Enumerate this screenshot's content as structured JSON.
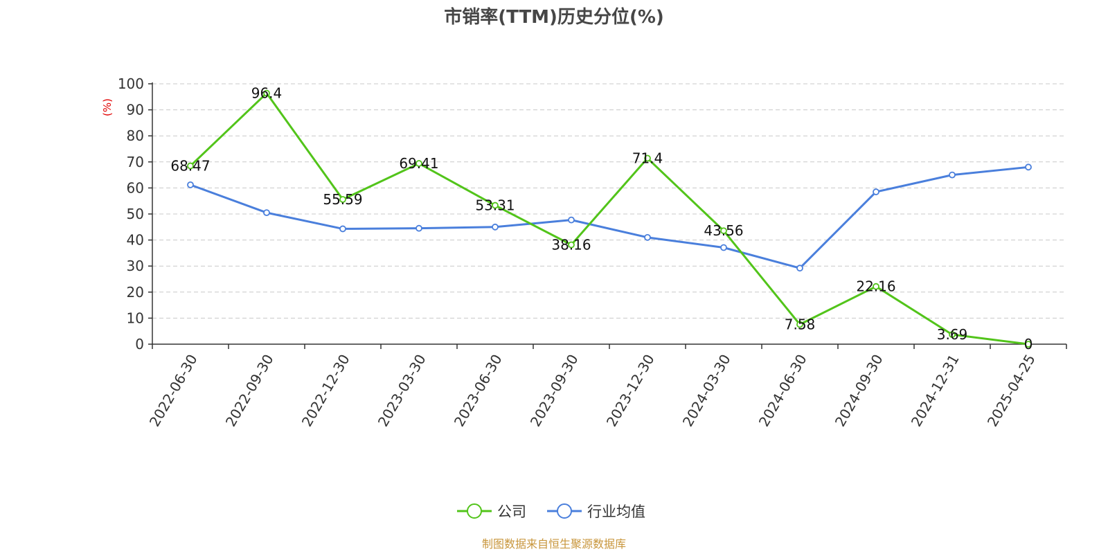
{
  "chart_data": {
    "type": "line",
    "title": "市销率(TTM)历史分位(%)",
    "ylabel": "(%)",
    "xlabel": "",
    "ylim": [
      0,
      100
    ],
    "yticks": [
      0,
      10,
      20,
      30,
      40,
      50,
      60,
      70,
      80,
      90,
      100
    ],
    "categories": [
      "2022-06-30",
      "2022-09-30",
      "2022-12-30",
      "2023-03-30",
      "2023-06-30",
      "2023-09-30",
      "2023-12-30",
      "2024-03-30",
      "2024-06-30",
      "2024-09-30",
      "2024-12-31",
      "2025-04-25"
    ],
    "grid": true,
    "legend_position": "bottom",
    "series": [
      {
        "name": "公司",
        "color": "#52c41a",
        "values": [
          68.47,
          96.4,
          55.59,
          69.41,
          53.31,
          38.16,
          71.4,
          43.56,
          7.58,
          22.16,
          3.69,
          0
        ],
        "labels": [
          "68.47",
          "96.4",
          "55.59",
          "69.41",
          "53.31",
          "38.16",
          "71.4",
          "43.56",
          "7.58",
          "22.16",
          "3.69",
          "0"
        ]
      },
      {
        "name": "行业均值",
        "color": "#4a7fdc",
        "values": [
          61.2,
          50.5,
          44.3,
          44.5,
          45.0,
          47.7,
          41.0,
          37.1,
          29.2,
          58.5,
          65.0,
          68.0
        ]
      }
    ],
    "source": "制图数据来自恒生聚源数据库",
    "source_color": "#c8963c"
  }
}
